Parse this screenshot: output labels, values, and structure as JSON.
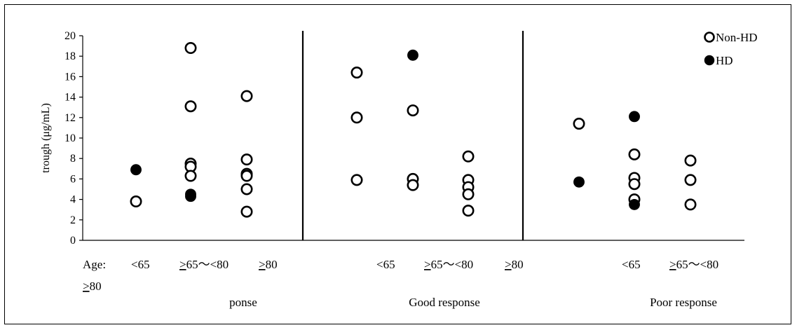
{
  "chart_data": {
    "type": "scatter",
    "ylabel": "trough (μg/mL)",
    "ylim": [
      0,
      20
    ],
    "yticks": [
      "0",
      "2",
      "4",
      "6",
      "8",
      "10",
      "12",
      "14",
      "16",
      "18",
      "20"
    ],
    "grid": false,
    "legend_position": "top-right",
    "colors": {
      "non_hd": "#ffffff",
      "hd": "#000000",
      "outline": "#000000"
    },
    "legend": [
      {
        "key": "non_hd",
        "label": "Non-HD"
      },
      {
        "key": "hd",
        "label": "HD"
      }
    ],
    "panels": [
      {
        "title": "ponse",
        "groups": [
          {
            "non_hd": [
              3.8
            ],
            "hd": [
              6.9
            ]
          },
          {
            "non_hd": [
              18.8,
              13.1,
              7.5,
              7.2,
              6.3
            ],
            "hd": [
              4.5,
              4.3
            ]
          },
          {
            "non_hd": [
              14.1,
              7.9,
              6.5,
              6.3,
              5.0,
              2.8
            ],
            "hd": []
          }
        ]
      },
      {
        "title": "Good response",
        "groups": [
          {
            "non_hd": [
              16.4,
              12.0,
              5.9
            ],
            "hd": []
          },
          {
            "non_hd": [
              12.7,
              6.0,
              5.4
            ],
            "hd": [
              18.1
            ]
          },
          {
            "non_hd": [
              8.2,
              5.9,
              5.2,
              4.5,
              2.9
            ],
            "hd": []
          }
        ]
      },
      {
        "title": "Poor response",
        "groups": [
          {
            "non_hd": [
              11.4
            ],
            "hd": [
              5.7
            ]
          },
          {
            "non_hd": [
              8.4,
              6.1,
              5.5,
              4.0
            ],
            "hd": [
              12.1,
              3.5
            ]
          },
          {
            "non_hd": [
              7.8,
              5.9,
              3.5
            ],
            "hd": []
          }
        ]
      }
    ],
    "age_labels": [
      {
        "text": "Age:",
        "under": ""
      },
      {
        "text": "<65",
        "under": ""
      },
      {
        "text": "",
        "under": ">65〜<80"
      },
      {
        "text": "",
        "under": ">80"
      },
      {
        "text": "",
        "under": ">80"
      },
      {
        "text": "<65",
        "under": ""
      },
      {
        "text": "",
        "under": ">65〜<80"
      },
      {
        "text": "",
        "under": ">80"
      },
      {
        "text": "<65",
        "under": ""
      },
      {
        "text": "",
        "under": ">65〜<80"
      }
    ]
  }
}
